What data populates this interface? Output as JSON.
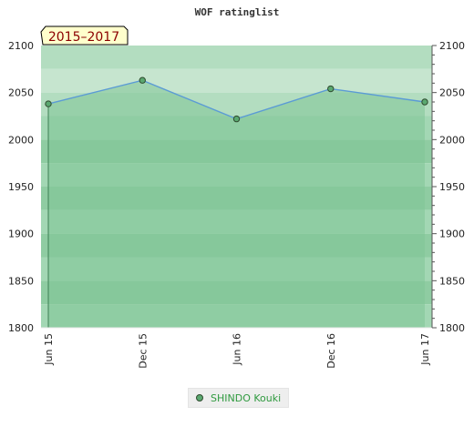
{
  "chart_data": {
    "type": "area",
    "title": "WOF ratinglist",
    "badge": "2015–2017",
    "x": [
      "Jun 15",
      "Dec 15",
      "Jun 16",
      "Dec 16",
      "Jun 17"
    ],
    "series": [
      {
        "name": "SHINDO Kouki",
        "values": [
          2038,
          2063,
          2022,
          2054,
          2040
        ]
      }
    ],
    "ylim": [
      1800,
      2100
    ],
    "yticks": [
      1800,
      1850,
      1900,
      1950,
      2000,
      2050,
      2100
    ],
    "grid": true,
    "legend_position": "bottom-center",
    "colors": {
      "line": "#5b9bd5",
      "fill": "#7fc496",
      "marker": "#5aa870",
      "marker_stroke": "#2e4a2e",
      "badge_bg": "#ffffcc",
      "badge_text": "#8b0000",
      "band_light": "#d9eee0",
      "band_mid": "#b3ddc0",
      "band_dark": "#99d2ab"
    }
  }
}
